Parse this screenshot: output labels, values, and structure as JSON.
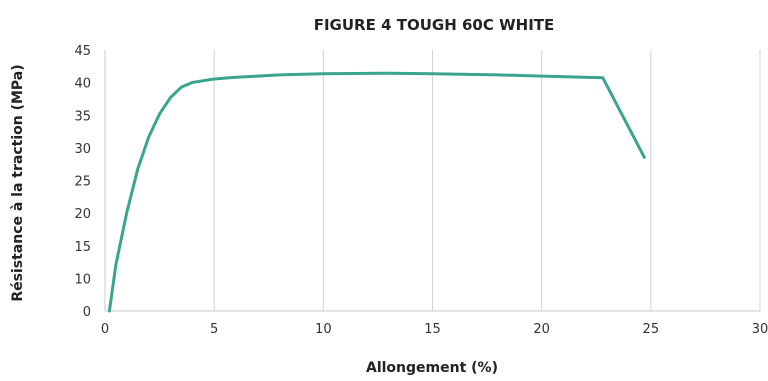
{
  "chart_data": {
    "type": "line",
    "title": "FIGURE 4 TOUGH 60C WHITE",
    "xlabel": "Allongement (%)",
    "ylabel": "Résistance à la traction (MPa)",
    "xlim": [
      0,
      30
    ],
    "ylim": [
      0,
      45
    ],
    "x_ticks": [
      0,
      5,
      10,
      15,
      20,
      25,
      30
    ],
    "y_ticks": [
      0,
      10,
      15,
      20,
      25,
      30,
      35,
      40,
      45
    ],
    "grid": "vertical",
    "legend": "none",
    "colors": {
      "series": "#3aa58d",
      "grid": "#d4d4d4",
      "text": "#222222"
    },
    "series": [
      {
        "x": [
          0.2,
          0.5,
          1.0,
          1.5,
          2.0,
          2.5,
          3.0,
          3.5,
          4.0,
          4.5,
          5.0,
          6.0,
          8.0,
          10.0,
          13.0,
          15.0,
          18.0,
          20.0,
          22.8,
          24.7
        ],
        "y": [
          0.0,
          8.0,
          17.0,
          24.5,
          30.0,
          34.0,
          36.8,
          38.6,
          39.4,
          39.7,
          40.0,
          40.3,
          40.7,
          40.9,
          41.0,
          40.9,
          40.7,
          40.5,
          40.2,
          26.5
        ]
      }
    ]
  }
}
